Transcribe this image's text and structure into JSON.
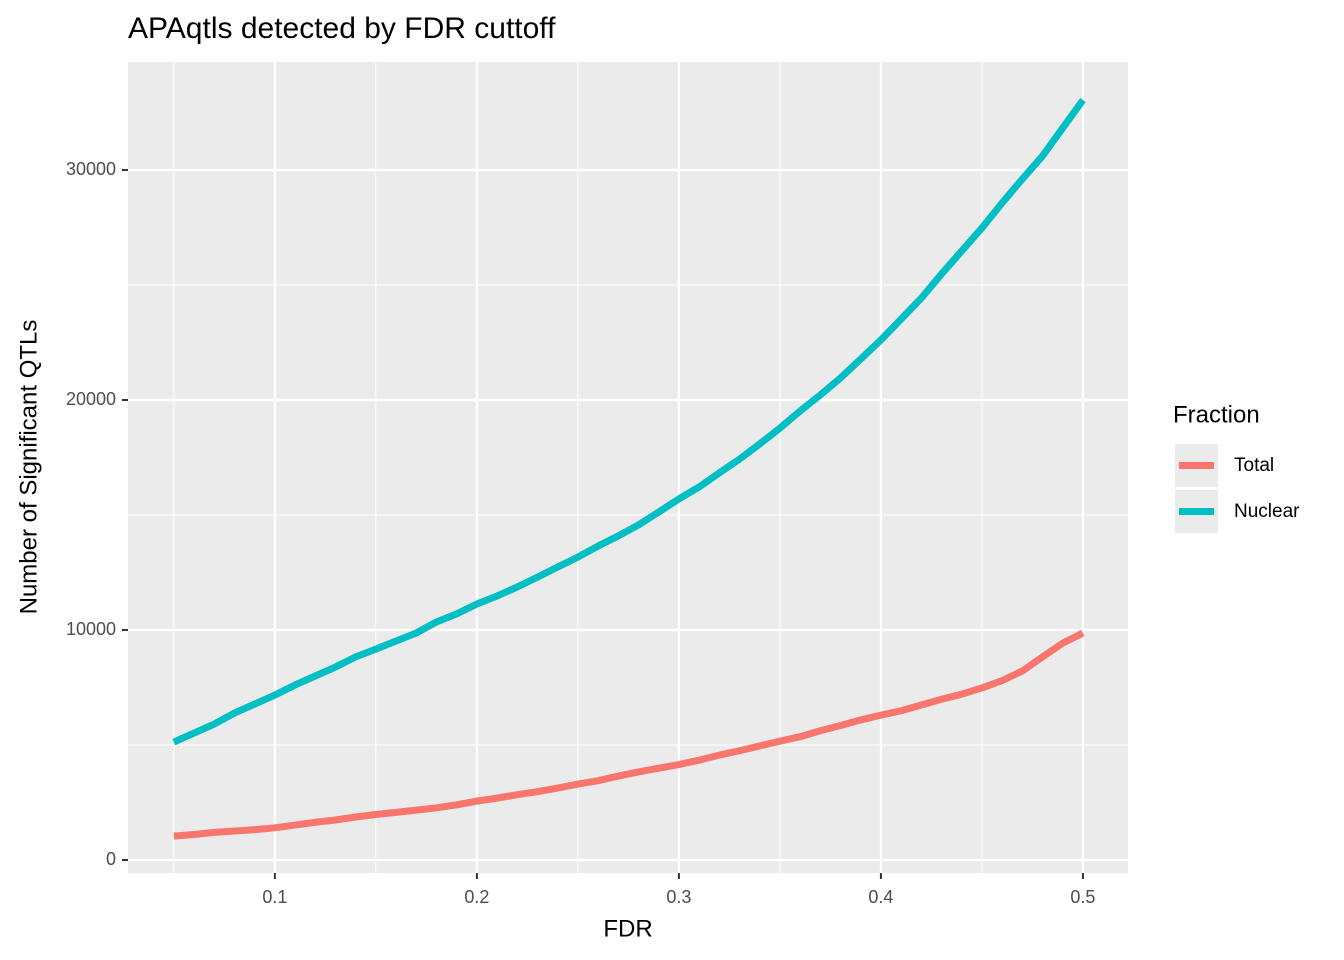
{
  "chart_data": {
    "type": "line",
    "title": "APAqtls detected by FDR cuttoff",
    "x_label": "FDR",
    "y_label": "Number of Significant QTLs",
    "legend_title": "Fraction",
    "legend_position": "right",
    "grid": true,
    "minor_grid": true,
    "x": [
      0.05,
      0.06,
      0.07,
      0.08,
      0.09,
      0.1,
      0.11,
      0.12,
      0.13,
      0.14,
      0.15,
      0.16,
      0.17,
      0.18,
      0.19,
      0.2,
      0.21,
      0.22,
      0.23,
      0.24,
      0.25,
      0.26,
      0.27,
      0.28,
      0.29,
      0.3,
      0.31,
      0.32,
      0.33,
      0.34,
      0.35,
      0.36,
      0.37,
      0.38,
      0.39,
      0.4,
      0.41,
      0.42,
      0.43,
      0.44,
      0.45,
      0.46,
      0.47,
      0.48,
      0.49,
      0.5
    ],
    "series": [
      {
        "name": "Total",
        "color": "#f8766d",
        "values": [
          1040,
          1110,
          1200,
          1260,
          1320,
          1400,
          1520,
          1640,
          1740,
          1870,
          1980,
          2070,
          2170,
          2270,
          2400,
          2560,
          2690,
          2840,
          2970,
          3130,
          3300,
          3450,
          3650,
          3830,
          3990,
          4150,
          4340,
          4560,
          4750,
          4960,
          5170,
          5360,
          5620,
          5850,
          6090,
          6300,
          6490,
          6740,
          6990,
          7210,
          7480,
          7800,
          8220,
          8830,
          9430,
          9870
        ]
      },
      {
        "name": "Nuclear",
        "color": "#00bfc4",
        "values": [
          5130,
          5520,
          5910,
          6390,
          6780,
          7170,
          7610,
          8000,
          8390,
          8830,
          9170,
          9520,
          9870,
          10350,
          10700,
          11130,
          11480,
          11870,
          12300,
          12740,
          13170,
          13650,
          14090,
          14570,
          15130,
          15700,
          16220,
          16830,
          17430,
          18090,
          18780,
          19520,
          20220,
          20960,
          21780,
          22610,
          23520,
          24430,
          25480,
          26480,
          27480,
          28570,
          29610,
          30610,
          31830,
          33040
        ]
      }
    ],
    "xlim": [
      0.0273,
      0.5223
    ],
    "xticks": [
      0.1,
      0.2,
      0.3,
      0.4,
      0.5
    ],
    "ylim": [
      -565,
      34696
    ],
    "yticks": [
      0,
      10000,
      20000,
      30000
    ]
  }
}
